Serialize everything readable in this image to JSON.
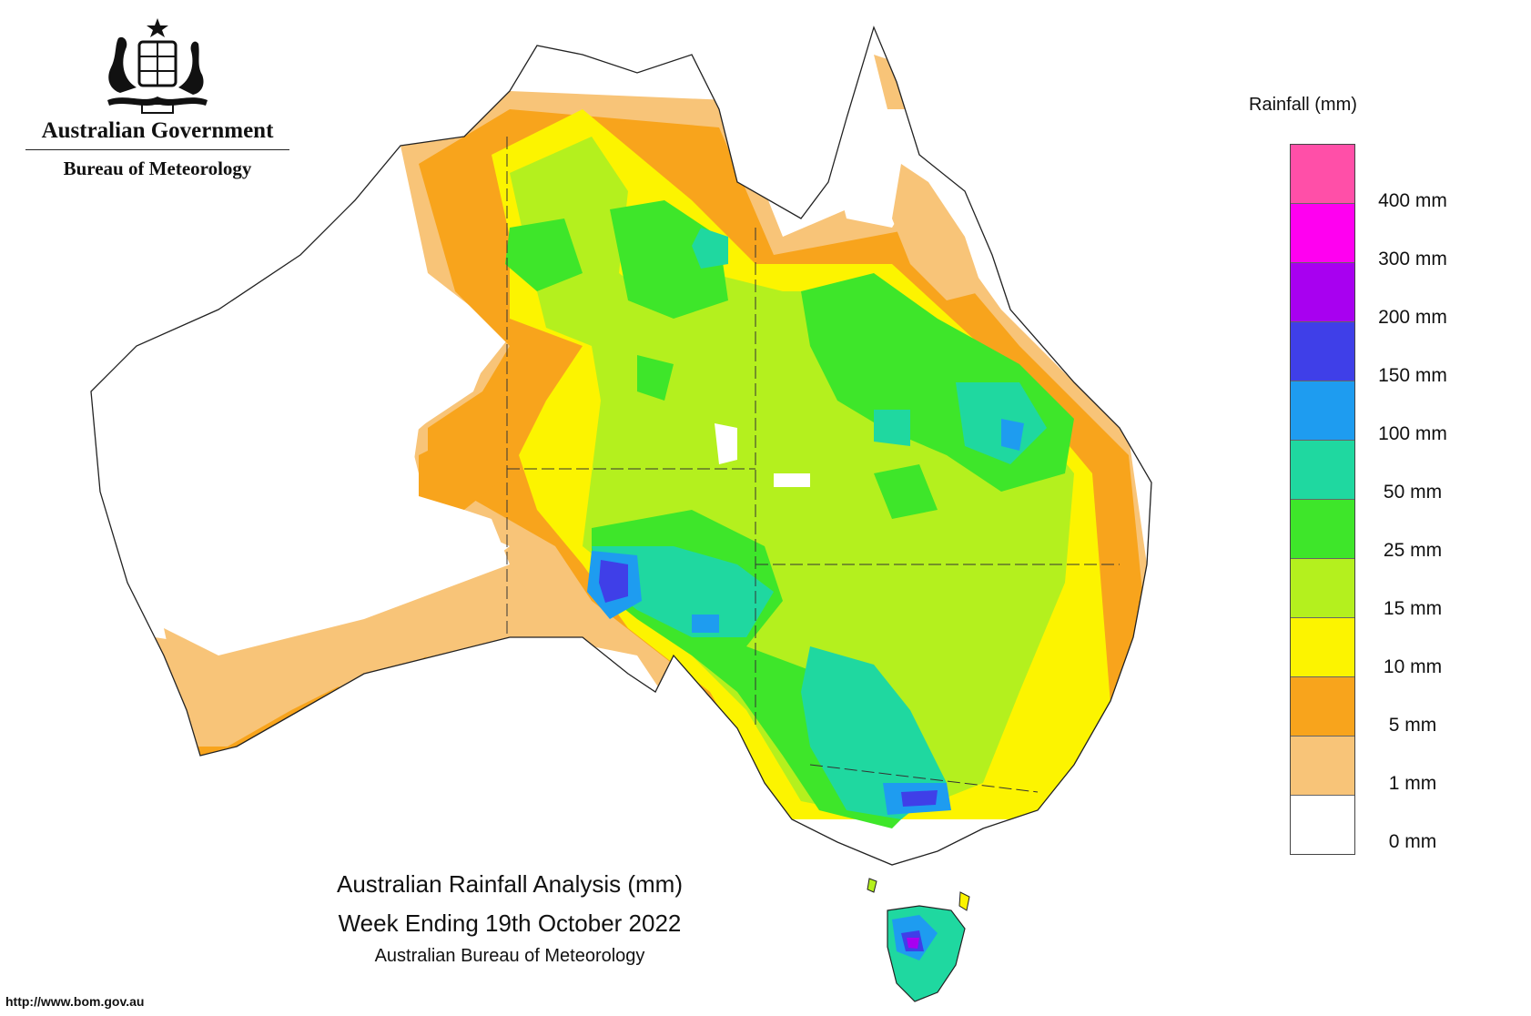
{
  "header": {
    "government": "Australian Government",
    "bureau": "Bureau of Meteorology",
    "crest_icon": "coat-of-arms-icon"
  },
  "map": {
    "title": "Australian Rainfall Analysis (mm)",
    "period": "Week Ending 19th October 2022",
    "organisation": "Australian Bureau of Meteorology",
    "url": "http://www.bom.gov.au"
  },
  "legend": {
    "title": "Rainfall (mm)",
    "levels": [
      {
        "label": "400 mm",
        "color": "#ff4fa8"
      },
      {
        "label": "300 mm",
        "color": "#ff00f0"
      },
      {
        "label": "200 mm",
        "color": "#a800f0"
      },
      {
        "label": "150 mm",
        "color": "#3f3fe8"
      },
      {
        "label": "100 mm",
        "color": "#1e9cf0"
      },
      {
        "label": "50 mm",
        "color": "#1fd8a0"
      },
      {
        "label": "25 mm",
        "color": "#3ee62a"
      },
      {
        "label": "15 mm",
        "color": "#b4f01e"
      },
      {
        "label": "10 mm",
        "color": "#fcf400"
      },
      {
        "label": "5 mm",
        "color": "#f8a41c"
      },
      {
        "label": "1 mm",
        "color": "#f8c478"
      },
      {
        "label": "0 mm",
        "color": "#ffffff"
      }
    ]
  }
}
